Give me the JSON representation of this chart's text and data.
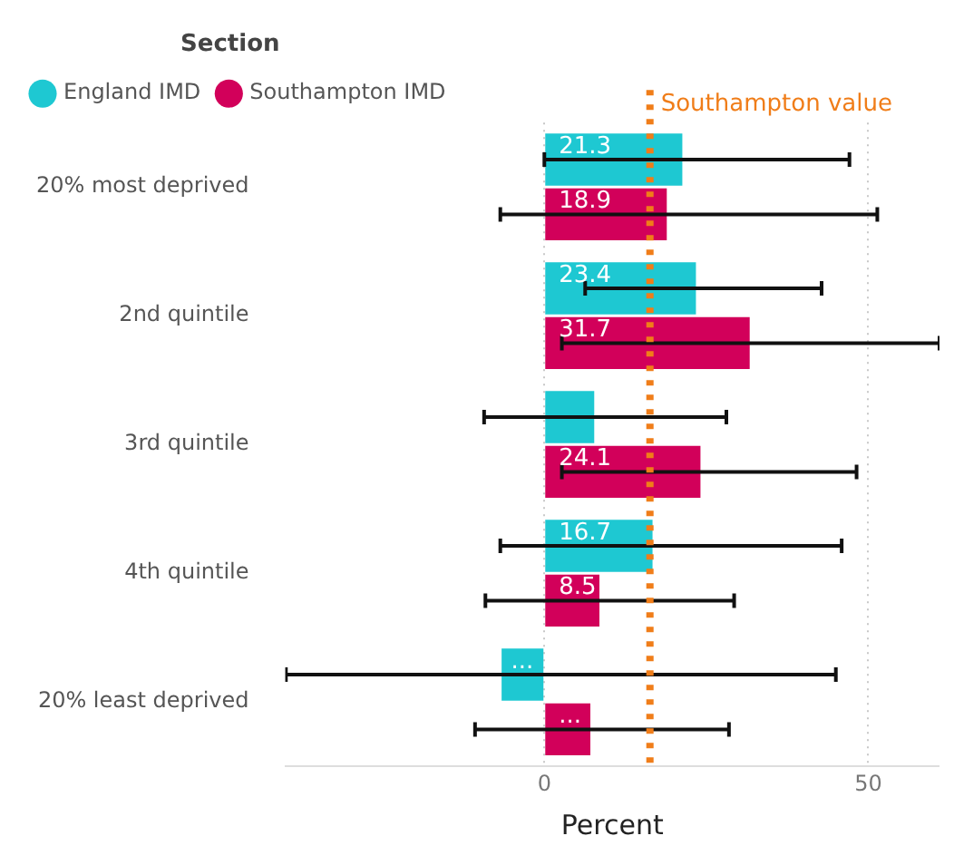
{
  "chart_data": {
    "type": "bar",
    "orientation": "horizontal",
    "xlabel": "Percent",
    "legend_title": "Section",
    "legend": "top left",
    "grid": "x",
    "categories": [
      "20% most deprived",
      "2nd quintile",
      "3rd quintile",
      "4th quintile",
      "20% least deprived"
    ],
    "xlim": [
      -40,
      61
    ],
    "xticks": [
      0,
      50
    ],
    "series": [
      {
        "name": "England IMD",
        "color": "#1ec8d2",
        "values": [
          21.3,
          23.4,
          7.7,
          16.7,
          -6.6
        ],
        "value_labels": [
          "21.3",
          "23.4",
          null,
          "16.7",
          "..."
        ],
        "errors": [
          [
            0,
            47.1
          ],
          [
            6.3,
            42.8
          ],
          [
            -9.3,
            28.1
          ],
          [
            -6.8,
            45.9
          ],
          [
            -39.9,
            45.0
          ]
        ]
      },
      {
        "name": "Southampton IMD",
        "color": "#d2005a",
        "values": [
          18.9,
          31.7,
          24.1,
          8.5,
          7.1
        ],
        "value_labels": [
          "18.9",
          "31.7",
          "24.1",
          "8.5",
          "..."
        ],
        "errors": [
          [
            -6.8,
            51.4
          ],
          [
            2.7,
            61
          ],
          [
            2.7,
            48.2
          ],
          [
            -9.1,
            29.3
          ],
          [
            -10.7,
            28.5
          ]
        ]
      }
    ],
    "ref_lines": [
      {
        "axis": "x",
        "value": 16.3,
        "label": "Southampton value",
        "color": "#f07d19",
        "line_style": "dotted"
      }
    ]
  }
}
